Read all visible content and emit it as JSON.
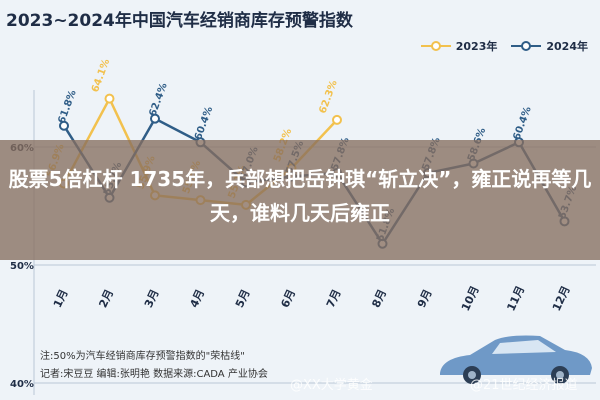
{
  "title": "2023~2024年中国汽车经销商库存预警指数",
  "headline": "股票5倍杠杆 1735年，兵部想把岳钟琪“斩立决”，雍正说再等几天，谁料几天后雍正",
  "notes": {
    "line1": "注:50%为汽车经销商库存预警指数的\"荣枯线\"",
    "line2": "记者:宋豆豆   编辑:张明艳   数据来源:CADA   产业协会"
  },
  "watermarks": [
    "@XX大学黄金",
    "@21世纪经济报道"
  ],
  "colors": {
    "y2023": "#f2c14e",
    "y2024": "#2f5d87",
    "grid": "#b9c7d6"
  },
  "chart_data": {
    "type": "line",
    "title": "2023~2024年中国汽车经销商库存预警指数",
    "categories": [
      "1月",
      "2月",
      "3月",
      "4月",
      "5月",
      "6月",
      "7月",
      "8月",
      "9月",
      "10月",
      "11月",
      "12月"
    ],
    "y_ticks": [
      {
        "value": 60,
        "label": "60%"
      },
      {
        "value": 50,
        "label": "50%"
      },
      {
        "value": 40,
        "label": "40%"
      }
    ],
    "ylim": [
      40,
      70
    ],
    "legend_position": "top-right",
    "series": [
      {
        "name": "2023年",
        "values": [
          56.9,
          64.1,
          55.9,
          55.5,
          55.1,
          58.2,
          62.3,
          null,
          null,
          null,
          null,
          null
        ],
        "labels": [
          "56.9%",
          "64.1%",
          "55.9%",
          "55.5%",
          "55.1%",
          "58.2%",
          "62.3%",
          "",
          "",
          "",
          "",
          ""
        ]
      },
      {
        "name": "2024年",
        "values": [
          61.8,
          55.7,
          62.4,
          60.4,
          57.0,
          57.5,
          57.8,
          51.8,
          57.8,
          58.6,
          60.4,
          53.7
        ],
        "labels": [
          "61.8%",
          "55.7%",
          "62.4%",
          "60.4%",
          "57.0%",
          "57.5%",
          "57.8%",
          "51.8%",
          "57.8%",
          "58.6%",
          "60.4%",
          "53.7%"
        ]
      }
    ]
  }
}
